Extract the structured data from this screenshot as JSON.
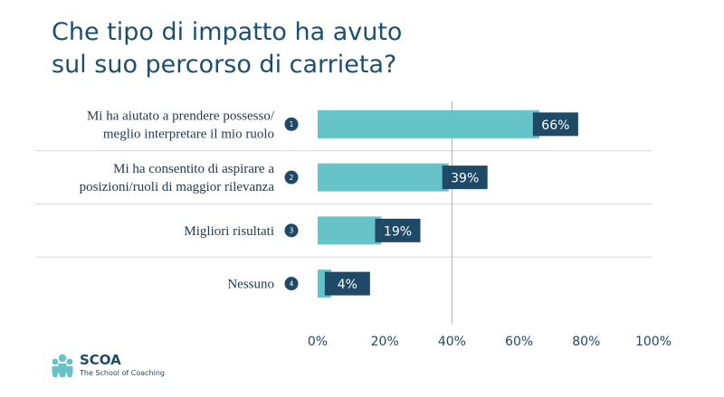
{
  "title": {
    "line1": "Che tipo di impatto ha avuto",
    "line2": "sul suo percorso di carrieta?"
  },
  "colors": {
    "bar": "#66c3c7",
    "label_box": "#1f4a67",
    "title": "#1d4f6e",
    "text": "#1f3a52",
    "axis_text": "#1f4a67",
    "badge": "#1f4a67"
  },
  "brand": {
    "name": "SCOA",
    "tagline": "The School of Coaching",
    "logo_icon": "coaching-figures-icon"
  },
  "chart_data": {
    "type": "bar",
    "orientation": "horizontal",
    "title": "Che tipo di impatto ha avuto sul suo percorso di carrieta?",
    "categories": [
      [
        "Mi ha aiutato a prendere possesso/",
        "meglio interpretare il mio ruolo"
      ],
      [
        "Mi ha consentito di aspirare a",
        "posizioni/ruoli di maggior rilevanza"
      ],
      [
        "Migliori risultati"
      ],
      [
        "Nessuno"
      ]
    ],
    "badges": [
      "1",
      "2",
      "3",
      "4"
    ],
    "values": [
      66,
      39,
      19,
      4
    ],
    "value_labels": [
      "66%",
      "39%",
      "19%",
      "4%"
    ],
    "xlim": [
      0,
      100
    ],
    "xticks": [
      0,
      20,
      40,
      60,
      80,
      100
    ],
    "xtick_labels": [
      "0%",
      "20%",
      "40%",
      "60%",
      "80%",
      "100%"
    ],
    "reference_line": 40,
    "grid": false
  }
}
